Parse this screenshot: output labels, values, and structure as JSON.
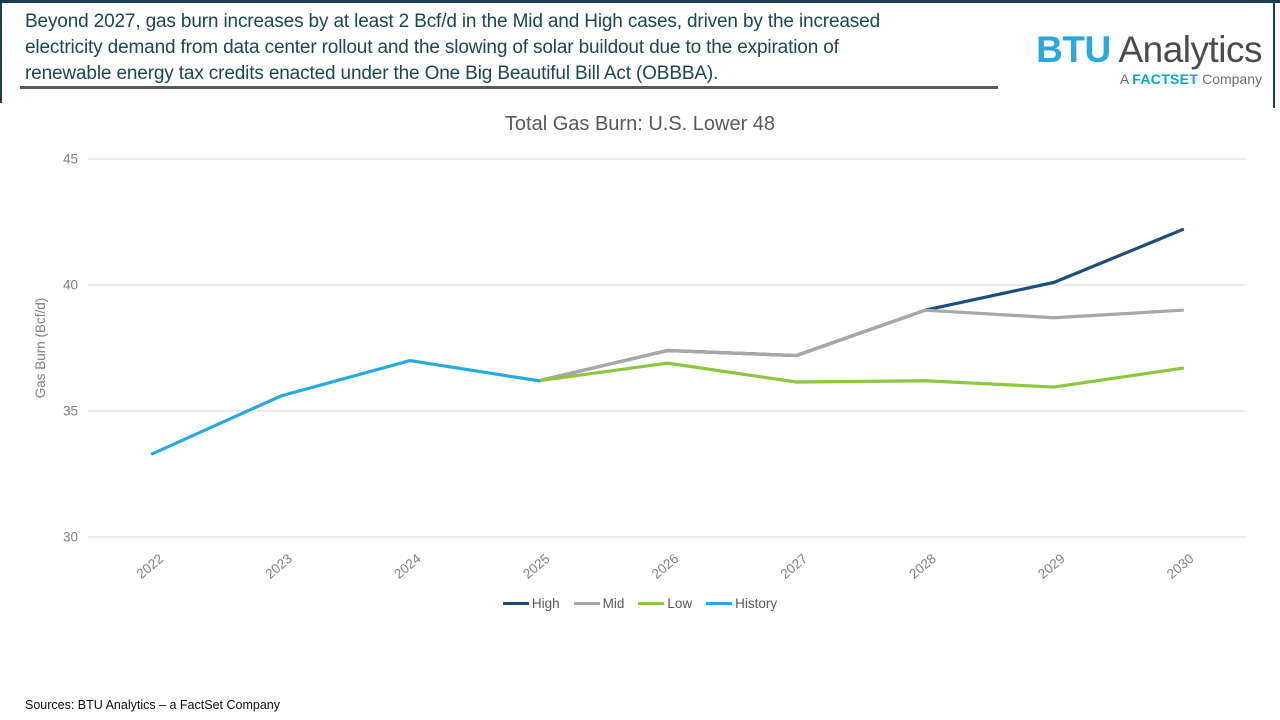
{
  "frame": {
    "border_color": "#1d3d52"
  },
  "header": {
    "text_color": "#1b4654",
    "lines": [
      "Beyond 2027, gas burn increases by at least 2 Bcf/d in the Mid and High cases, driven by the increased",
      "electricity demand from data center rollout and the slowing of solar buildout due to the expiration of",
      "renewable energy tax credits enacted under the One Big Beautiful Bill Act (OBBBA)."
    ]
  },
  "logo": {
    "brand_primary": "BTU",
    "brand_secondary": "Analytics",
    "brand_color": "#2aa9e0",
    "secondary_color": "#4b4b4d",
    "tagline_prefix": "A",
    "tagline_brand": "FACTSET",
    "tagline_suffix": "Company",
    "tagline_brand_color": "#00a5da",
    "tagline_text_color": "#6d6e71"
  },
  "chart_data": {
    "type": "line",
    "title": "Total Gas Burn: U.S. Lower 48",
    "xlabel": "",
    "ylabel": "Gas Burn (Bcf/d)",
    "categories": [
      2022,
      2023,
      2024,
      2025,
      2026,
      2027,
      2028,
      2029,
      2030
    ],
    "ylim": [
      30,
      45
    ],
    "yticks": [
      30,
      35,
      40,
      45
    ],
    "grid": true,
    "legend_position": "bottom",
    "series": [
      {
        "name": "High",
        "color": "#1c4e79",
        "x": [
          2025,
          2026,
          2027,
          2028,
          2029,
          2030
        ],
        "values": [
          36.2,
          37.4,
          37.2,
          39.0,
          40.1,
          42.2
        ]
      },
      {
        "name": "Mid",
        "color": "#a8a8a8",
        "x": [
          2025,
          2026,
          2027,
          2028,
          2029,
          2030
        ],
        "values": [
          36.2,
          37.4,
          37.2,
          39.0,
          38.7,
          39.0
        ]
      },
      {
        "name": "Low",
        "color": "#8dc63f",
        "x": [
          2025,
          2026,
          2027,
          2028,
          2029,
          2030
        ],
        "values": [
          36.2,
          36.9,
          36.15,
          36.2,
          35.95,
          36.7
        ]
      },
      {
        "name": "History",
        "color": "#27aae1",
        "x": [
          2022,
          2023,
          2024,
          2025
        ],
        "values": [
          33.3,
          35.6,
          37.0,
          36.2
        ]
      }
    ]
  },
  "footer": {
    "source": "Sources: BTU Analytics – a FactSet Company"
  }
}
